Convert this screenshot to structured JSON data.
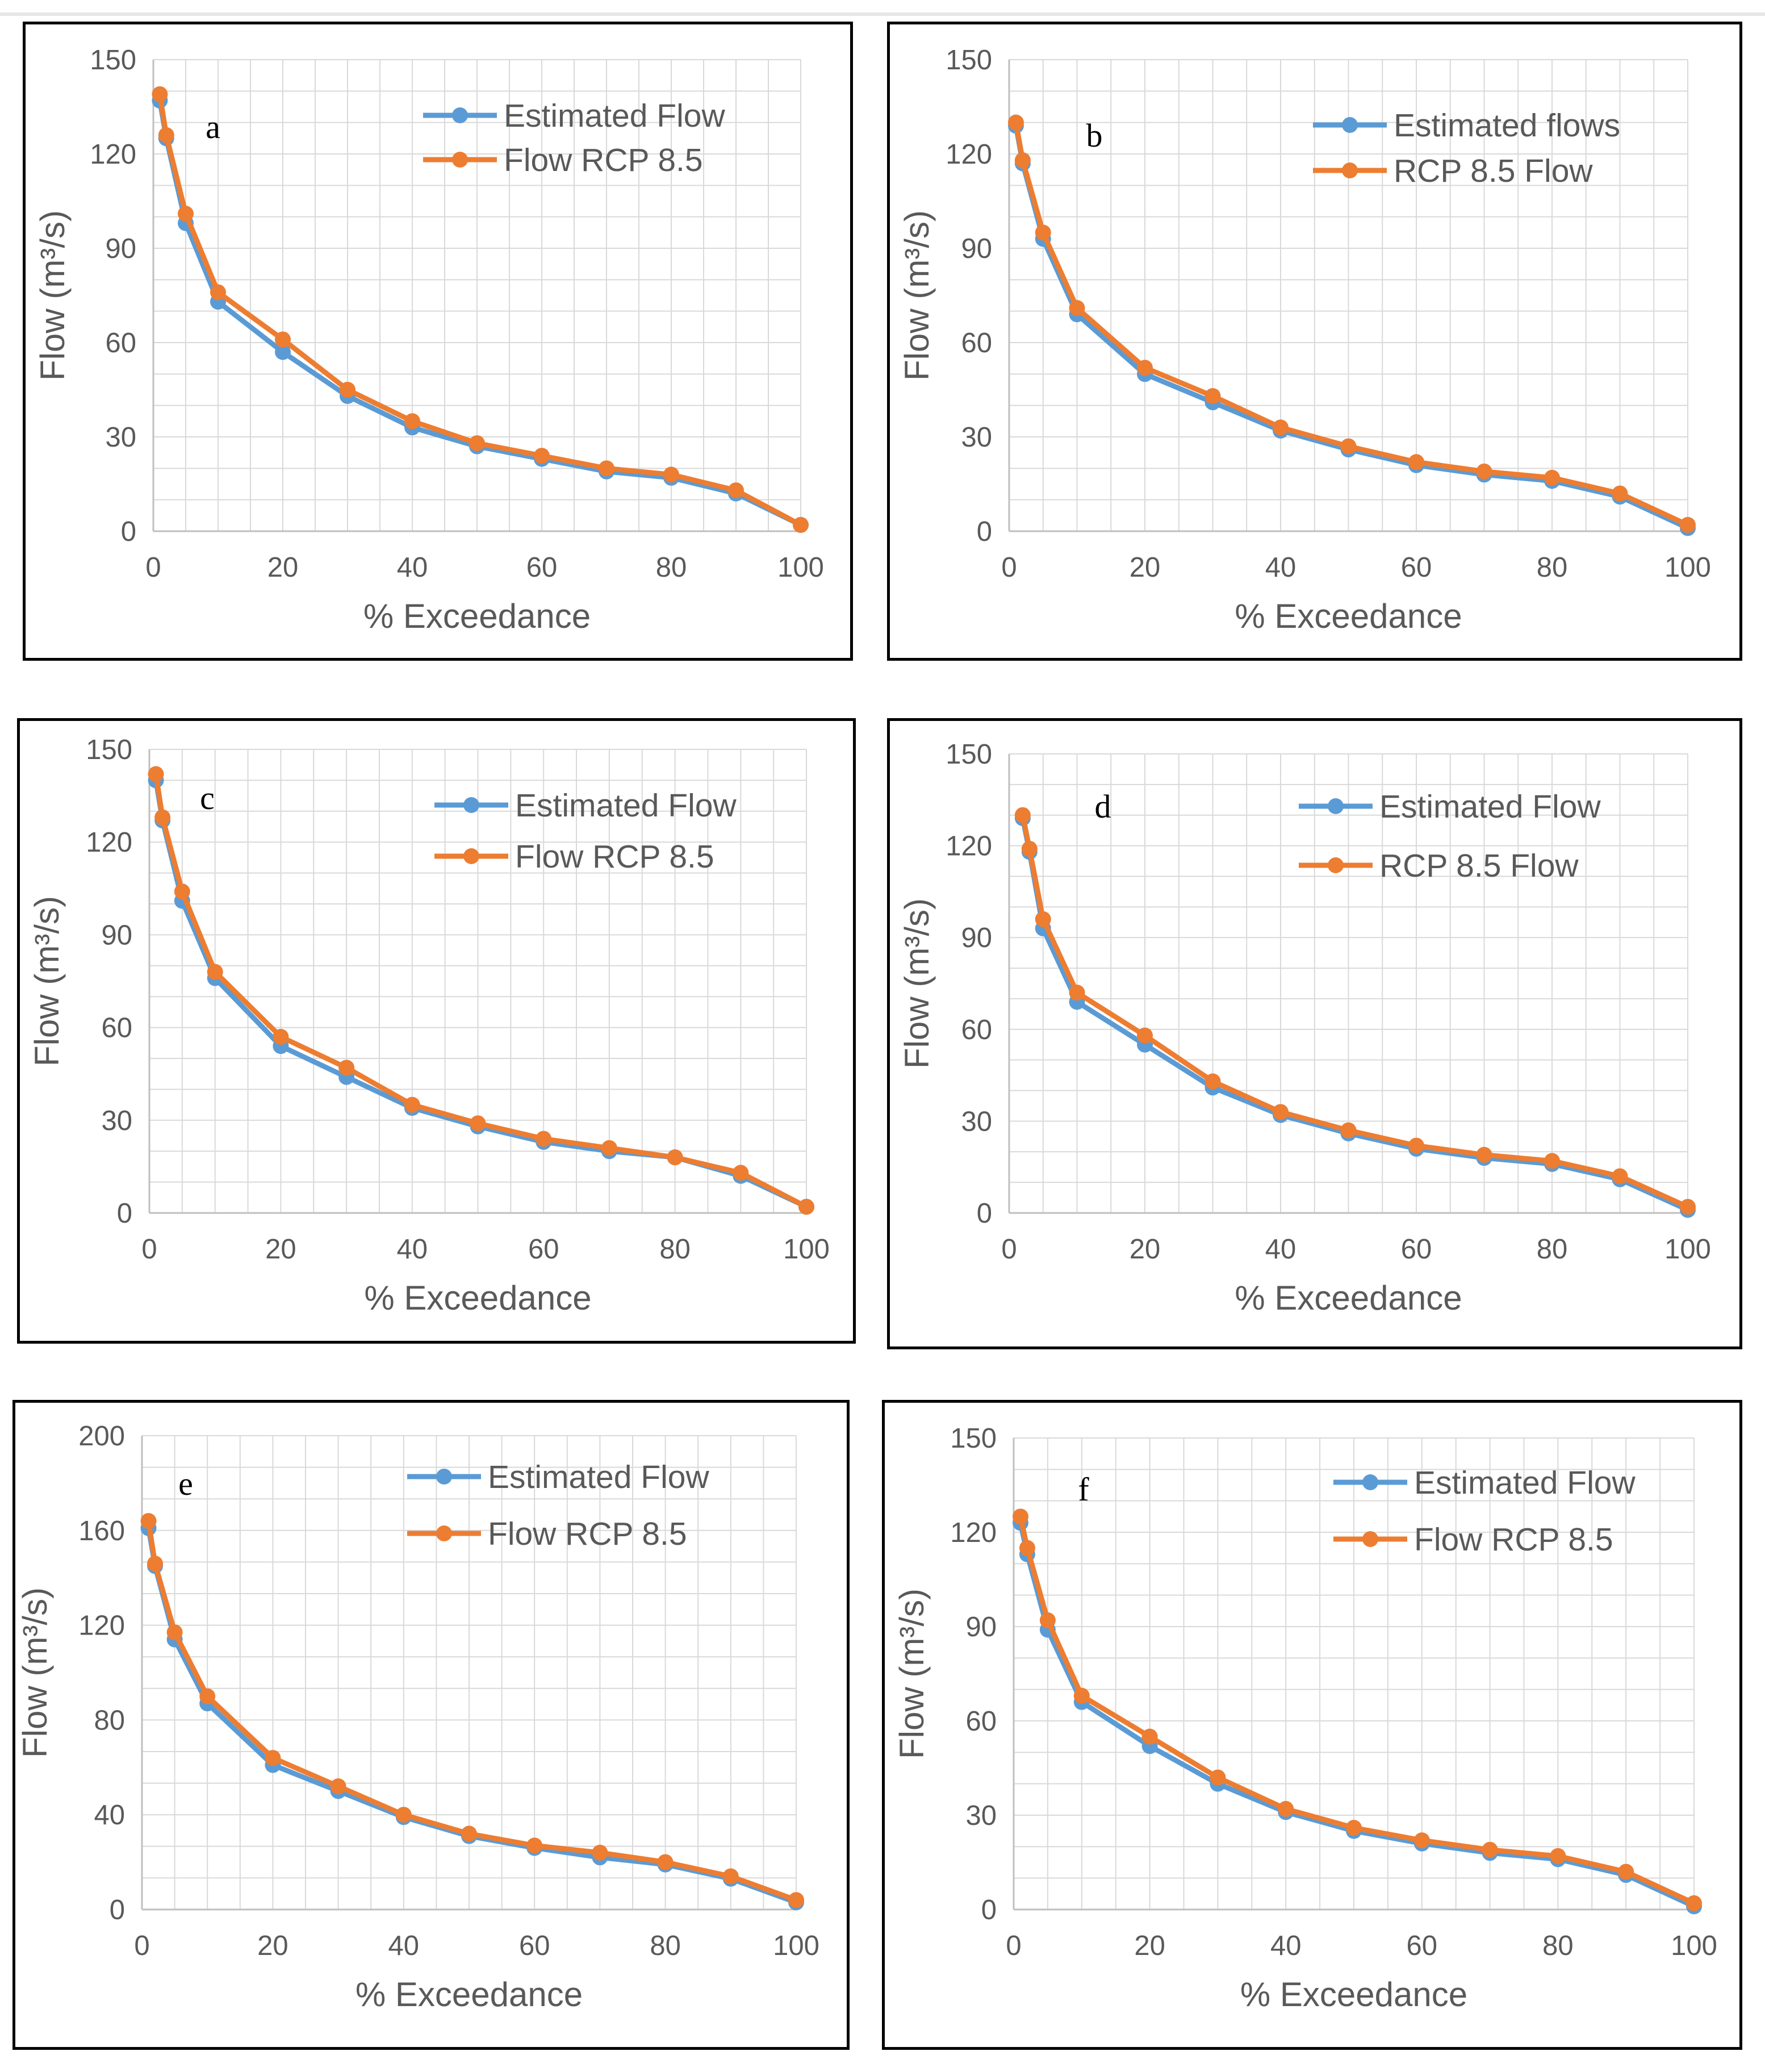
{
  "colors": {
    "estimated": "#5b9bd5",
    "rcp": "#ed7d31",
    "grid": "#d9d9d9",
    "axis_text": "#595959"
  },
  "chart_data": [
    {
      "type": "line",
      "panel_label": "a",
      "xlabel": "% Exceedance",
      "ylabel": "Flow (m3/s)",
      "xlim": [
        0,
        100
      ],
      "ylim": [
        0,
        150
      ],
      "xticks": [
        0,
        20,
        40,
        60,
        80,
        100
      ],
      "yticks": [
        0,
        30,
        60,
        90,
        120,
        150
      ],
      "x": [
        1,
        2,
        5,
        10,
        20,
        30,
        40,
        50,
        60,
        70,
        80,
        90,
        100
      ],
      "series": [
        {
          "name": "Estimated Flow",
          "values": [
            137,
            125,
            98,
            73,
            57,
            43,
            33,
            27,
            23,
            19,
            17,
            12,
            2
          ]
        },
        {
          "name": "Flow RCP 8.5",
          "values": [
            139,
            126,
            101,
            76,
            61,
            45,
            35,
            28,
            24,
            20,
            18,
            13,
            2
          ]
        }
      ]
    },
    {
      "type": "line",
      "panel_label": "b",
      "xlabel": "% Exceedance",
      "ylabel": "Flow (m3/s)",
      "xlim": [
        0,
        100
      ],
      "ylim": [
        0,
        150
      ],
      "xticks": [
        0,
        20,
        40,
        60,
        80,
        100
      ],
      "yticks": [
        0,
        30,
        60,
        90,
        120,
        150
      ],
      "x": [
        1,
        2,
        5,
        10,
        20,
        30,
        40,
        50,
        60,
        70,
        80,
        90,
        100
      ],
      "series": [
        {
          "name": "Estimated flows",
          "values": [
            129,
            117,
            93,
            69,
            50,
            41,
            32,
            26,
            21,
            18,
            16,
            11,
            1
          ]
        },
        {
          "name": "RCP 8.5  Flow",
          "values": [
            130,
            118,
            95,
            71,
            52,
            43,
            33,
            27,
            22,
            19,
            17,
            12,
            2
          ]
        }
      ]
    },
    {
      "type": "line",
      "panel_label": "c",
      "xlabel": "% Exceedance",
      "ylabel": "Flow (m3/s)",
      "xlim": [
        0,
        100
      ],
      "ylim": [
        0,
        150
      ],
      "xticks": [
        0,
        20,
        40,
        60,
        80,
        100
      ],
      "yticks": [
        0,
        30,
        60,
        90,
        120,
        150
      ],
      "x": [
        1,
        2,
        5,
        10,
        20,
        30,
        40,
        50,
        60,
        70,
        80,
        90,
        100
      ],
      "series": [
        {
          "name": "Estimated Flow",
          "values": [
            140,
            127,
            101,
            76,
            54,
            44,
            34,
            28,
            23,
            20,
            18,
            12,
            2
          ]
        },
        {
          "name": "Flow RCP 8.5",
          "values": [
            142,
            128,
            104,
            78,
            57,
            47,
            35,
            29,
            24,
            21,
            18,
            13,
            2
          ]
        }
      ]
    },
    {
      "type": "line",
      "panel_label": "d",
      "xlabel": "% Exceedance",
      "ylabel": "Flow (m3/s)",
      "xlim": [
        0,
        100
      ],
      "ylim": [
        0,
        150
      ],
      "xticks": [
        0,
        20,
        40,
        60,
        80,
        100
      ],
      "yticks": [
        0,
        30,
        60,
        90,
        120,
        150
      ],
      "x": [
        2,
        3,
        5,
        10,
        20,
        30,
        40,
        50,
        60,
        70,
        80,
        90,
        100
      ],
      "series": [
        {
          "name": "Estimated Flow",
          "values": [
            129,
            118,
            93,
            69,
            55,
            41,
            32,
            26,
            21,
            18,
            16,
            11,
            1
          ]
        },
        {
          "name": "RCP 8.5 Flow",
          "values": [
            130,
            119,
            96,
            72,
            58,
            43,
            33,
            27,
            22,
            19,
            17,
            12,
            2
          ]
        }
      ]
    },
    {
      "type": "line",
      "panel_label": "e",
      "xlabel": "% Exceedance",
      "ylabel": "Flow (m3/s)",
      "xlim": [
        0,
        100
      ],
      "ylim": [
        0,
        200
      ],
      "xticks": [
        0,
        20,
        40,
        60,
        80,
        100
      ],
      "yticks": [
        0,
        40,
        80,
        120,
        160,
        200
      ],
      "x": [
        1,
        2,
        5,
        10,
        20,
        30,
        40,
        50,
        60,
        70,
        80,
        90,
        100
      ],
      "series": [
        {
          "name": "Estimated Flow",
          "values": [
            161,
            145,
            114,
            87,
            61,
            50,
            39,
            31,
            26,
            22,
            19,
            13,
            3
          ]
        },
        {
          "name": "Flow RCP 8.5",
          "values": [
            164,
            146,
            117,
            90,
            64,
            52,
            40,
            32,
            27,
            24,
            20,
            14,
            4
          ]
        }
      ]
    },
    {
      "type": "line",
      "panel_label": "f",
      "xlabel": "% Exceedance",
      "ylabel": "Flow (m3/s)",
      "xlim": [
        0,
        100
      ],
      "ylim": [
        0,
        150
      ],
      "xticks": [
        0,
        20,
        40,
        60,
        80,
        100
      ],
      "yticks": [
        0,
        30,
        60,
        90,
        120,
        150
      ],
      "x": [
        1,
        2,
        5,
        10,
        20,
        30,
        40,
        50,
        60,
        70,
        80,
        90,
        100
      ],
      "series": [
        {
          "name": "Estimated Flow",
          "values": [
            123,
            113,
            89,
            66,
            52,
            40,
            31,
            25,
            21,
            18,
            16,
            11,
            1
          ]
        },
        {
          "name": "Flow RCP 8.5",
          "values": [
            125,
            115,
            92,
            68,
            55,
            42,
            32,
            26,
            22,
            19,
            17,
            12,
            2
          ]
        }
      ]
    }
  ]
}
